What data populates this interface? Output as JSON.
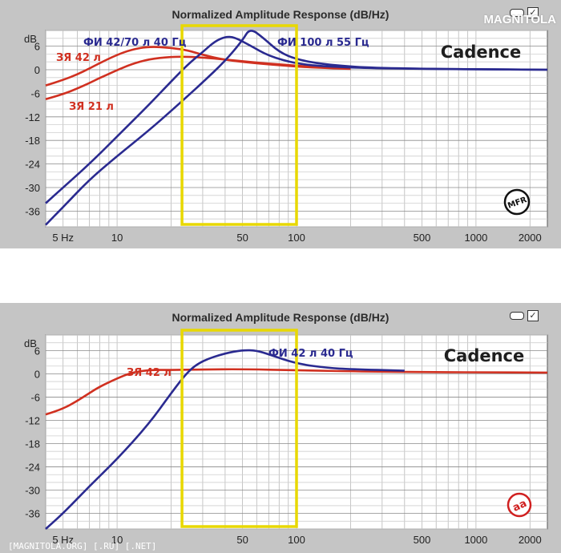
{
  "watermark_logo": "MAGNITOLA",
  "footer_watermark": "[MAGNITOLA.ORG] [.RU] [.NET]",
  "chart_data": [
    {
      "type": "line",
      "title": "Normalized Amplitude Response (dB/Hz)",
      "brand": "Cadence",
      "badge": "MFR",
      "ylabel": "dB",
      "xscale": "log",
      "xlim": [
        4,
        2500
      ],
      "ylim": [
        -40,
        10
      ],
      "xticks": [
        5,
        10,
        50,
        100,
        500,
        1000,
        2000
      ],
      "xtick_labels": [
        "5 Hz",
        "10",
        "50",
        "100",
        "500",
        "1000",
        "2000"
      ],
      "yticks": [
        6,
        0,
        -6,
        -12,
        -18,
        -24,
        -30,
        -36
      ],
      "ytick_labels": [
        "6",
        "0",
        "-6",
        "-12",
        "-18",
        "-24",
        "-30",
        "-36"
      ],
      "grid": true,
      "highlight_range": [
        23,
        100
      ],
      "highlight_color": "#e8d800",
      "series": [
        {
          "name": "ЗЯ 42 л",
          "color": "#d03020",
          "x": [
            4,
            5,
            6,
            7,
            8,
            10,
            12,
            15,
            20,
            25,
            30,
            40,
            60,
            100,
            150,
            200
          ],
          "y": [
            -4,
            -2.6,
            -1.2,
            0.3,
            1.7,
            3.8,
            5.1,
            5.9,
            5.6,
            4.9,
            3.8,
            2.5,
            1.6,
            0.8,
            0.4,
            0.2
          ]
        },
        {
          "name": "ЗЯ 21 л",
          "color": "#d03020",
          "x": [
            4,
            5,
            6,
            7,
            8,
            10,
            12,
            15,
            20,
            25,
            30,
            40,
            60,
            100,
            150,
            200
          ],
          "y": [
            -7.5,
            -6.2,
            -4.8,
            -3.4,
            -2.1,
            -0.1,
            1.4,
            2.7,
            3.3,
            3.3,
            3.1,
            2.6,
            1.8,
            1.0,
            0.5,
            0.3
          ]
        },
        {
          "name": "ФИ 42/70 л 40 Гц",
          "color": "#2a2a90",
          "x": [
            4,
            5,
            7,
            10,
            15,
            20,
            25,
            30,
            35,
            40,
            45,
            55,
            70,
            100,
            150,
            300,
            2500
          ],
          "y": [
            -34,
            -30,
            -24,
            -17,
            -9,
            -3,
            1.5,
            4.5,
            7.2,
            8.4,
            8.3,
            6.2,
            3.5,
            1.5,
            0.8,
            0.3,
            0
          ]
        },
        {
          "name": "ФИ 100 л 55 Гц",
          "color": "#2a2a90",
          "x": [
            4,
            5,
            7,
            10,
            15,
            20,
            25,
            30,
            40,
            50,
            55,
            65,
            80,
            100,
            150,
            300,
            2500
          ],
          "y": [
            -39.5,
            -35,
            -28,
            -22,
            -15.5,
            -10.5,
            -6.5,
            -3.2,
            2.2,
            7.5,
            10.6,
            8.2,
            4.5,
            2.6,
            1.2,
            0.3,
            0
          ]
        }
      ],
      "annotations": [
        {
          "text": "ФИ 42/70 л 40 Гц",
          "color": "#2a2a90"
        },
        {
          "text": "ФИ 100 л 55 Гц",
          "color": "#2a2a90"
        },
        {
          "text": "ЗЯ 42 л",
          "color": "#d03020"
        },
        {
          "text": "ЗЯ 21 л",
          "color": "#d03020"
        }
      ]
    },
    {
      "type": "line",
      "title": "Normalized Amplitude Response (dB/Hz)",
      "brand": "Cadence",
      "badge": "aa",
      "ylabel": "dB",
      "xscale": "log",
      "xlim": [
        4,
        2500
      ],
      "ylim": [
        -40,
        10
      ],
      "xticks": [
        5,
        10,
        50,
        100,
        500,
        1000,
        2000
      ],
      "xtick_labels": [
        "5 Hz",
        "10",
        "50",
        "100",
        "500",
        "1000",
        "2000"
      ],
      "yticks": [
        6,
        0,
        -6,
        -12,
        -18,
        -24,
        -30,
        -36
      ],
      "ytick_labels": [
        "6",
        "0",
        "-6",
        "-12",
        "-18",
        "-24",
        "-30",
        "-36"
      ],
      "grid": true,
      "highlight_range": [
        23,
        100
      ],
      "highlight_color": "#e8d800",
      "series": [
        {
          "name": "ЗЯ 42 л",
          "color": "#d03020",
          "x": [
            4,
            5,
            6,
            7,
            8,
            10,
            12,
            15,
            20,
            30,
            50,
            100,
            300,
            2500
          ],
          "y": [
            -10.5,
            -9,
            -7,
            -5,
            -3.3,
            -1.2,
            0.3,
            1.0,
            1.0,
            1.1,
            1.2,
            0.9,
            0.5,
            0.3
          ]
        },
        {
          "name": "ФИ 42 л 40 Гц",
          "color": "#2a2a90",
          "x": [
            4,
            5,
            7,
            10,
            15,
            20,
            25,
            30,
            40,
            50,
            60,
            70,
            100,
            150,
            200,
            400
          ],
          "y": [
            -40,
            -36,
            -29,
            -22,
            -13,
            -5,
            0.8,
            3.4,
            5.3,
            6.1,
            6.0,
            5.0,
            2.6,
            1.5,
            1.2,
            0.8
          ]
        }
      ],
      "annotations": [
        {
          "text": "ФИ 42 л 40 Гц",
          "color": "#2a2a90"
        },
        {
          "text": "ЗЯ 42 л",
          "color": "#d03020"
        }
      ]
    }
  ]
}
